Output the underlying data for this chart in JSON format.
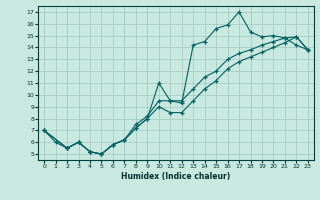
{
  "xlabel": "Humidex (Indice chaleur)",
  "xlim": [
    -0.5,
    23.5
  ],
  "ylim": [
    4.5,
    17.5
  ],
  "xticks": [
    0,
    1,
    2,
    3,
    4,
    5,
    6,
    7,
    8,
    9,
    10,
    11,
    12,
    13,
    14,
    15,
    16,
    17,
    18,
    19,
    20,
    21,
    22,
    23
  ],
  "yticks": [
    5,
    6,
    7,
    8,
    9,
    10,
    11,
    12,
    13,
    14,
    15,
    16,
    17
  ],
  "bg_color": "#c8e8e0",
  "grid_color": "#a0c8c0",
  "line_color": "#006060",
  "line1_x": [
    0,
    1,
    2,
    3,
    4,
    5,
    6,
    7,
    8,
    9,
    10,
    11,
    12,
    13,
    14,
    15,
    16,
    17,
    18,
    19,
    20,
    21,
    22,
    23
  ],
  "line1_y": [
    7.0,
    6.0,
    5.5,
    6.0,
    5.2,
    5.0,
    5.8,
    6.2,
    7.2,
    8.0,
    11.0,
    9.5,
    9.3,
    14.2,
    14.5,
    15.6,
    15.9,
    17.0,
    15.3,
    14.9,
    15.0,
    14.8,
    14.2,
    13.8
  ],
  "line2_x": [
    0,
    2,
    3,
    4,
    5,
    6,
    7,
    8,
    9,
    10,
    11,
    12,
    13,
    14,
    15,
    16,
    17,
    18,
    19,
    20,
    21,
    22,
    23
  ],
  "line2_y": [
    7.0,
    5.5,
    6.0,
    5.2,
    5.0,
    5.8,
    6.2,
    7.5,
    8.2,
    9.5,
    9.5,
    9.5,
    10.5,
    11.5,
    12.0,
    13.0,
    13.5,
    13.8,
    14.2,
    14.5,
    14.8,
    14.9,
    13.8
  ],
  "line3_x": [
    0,
    2,
    3,
    4,
    5,
    6,
    7,
    8,
    9,
    10,
    11,
    12,
    13,
    14,
    15,
    16,
    17,
    18,
    19,
    20,
    21,
    22,
    23
  ],
  "line3_y": [
    7.0,
    5.5,
    6.0,
    5.2,
    5.0,
    5.8,
    6.2,
    7.2,
    8.0,
    9.0,
    8.5,
    8.5,
    9.5,
    10.5,
    11.2,
    12.2,
    12.8,
    13.2,
    13.6,
    14.0,
    14.4,
    14.9,
    13.8
  ]
}
